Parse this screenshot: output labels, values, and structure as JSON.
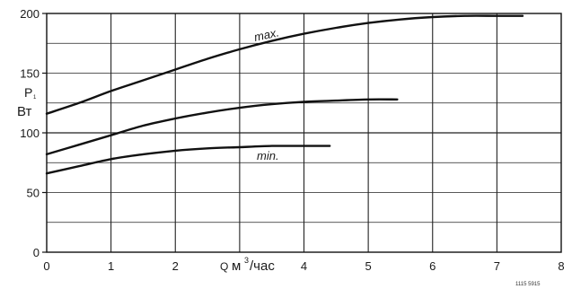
{
  "chart_data": {
    "type": "line",
    "xlabel": {
      "prefix": "Q",
      "unit_base": "м",
      "unit_sup": "3",
      "unit_tail": "/час"
    },
    "ylabel": {
      "symbol": "P",
      "sub": "1",
      "unit": "Вт"
    },
    "xlim": [
      0,
      8
    ],
    "ylim": [
      0,
      200
    ],
    "x_ticks": [
      0,
      1,
      2,
      3,
      4,
      5,
      6,
      7,
      8
    ],
    "x_tick_labels": [
      "0",
      "1",
      "2",
      "",
      "4",
      "5",
      "6",
      "7",
      "8"
    ],
    "y_ticks": [
      0,
      50,
      100,
      150,
      200
    ],
    "y_tick_labels": [
      "0",
      "50",
      "100",
      "150",
      "200"
    ],
    "grid": true,
    "series": [
      {
        "name": "max.",
        "x": [
          0,
          0.5,
          1,
          1.5,
          2,
          2.5,
          3,
          3.5,
          4,
          4.5,
          5,
          5.5,
          6,
          6.5,
          7,
          7.4
        ],
        "y": [
          116,
          125,
          135,
          144,
          153,
          162,
          170,
          177,
          183,
          188,
          192,
          195,
          197,
          198,
          198,
          198
        ]
      },
      {
        "name": "",
        "x": [
          0,
          0.5,
          1,
          1.5,
          2,
          2.5,
          3,
          3.5,
          4,
          4.5,
          5,
          5.45
        ],
        "y": [
          82,
          90,
          98,
          106,
          112,
          117,
          121,
          124,
          126,
          127,
          128,
          128
        ]
      },
      {
        "name": "min.",
        "x": [
          0,
          0.5,
          1,
          1.5,
          2,
          2.5,
          3,
          3.5,
          4,
          4.4
        ],
        "y": [
          66,
          72,
          78,
          82,
          85,
          87,
          88,
          89,
          89,
          89
        ]
      }
    ],
    "annotations": [
      {
        "text": "max.",
        "series": 0
      },
      {
        "text": "min.",
        "series": 2
      }
    ],
    "figure_code": "1115 5915"
  }
}
